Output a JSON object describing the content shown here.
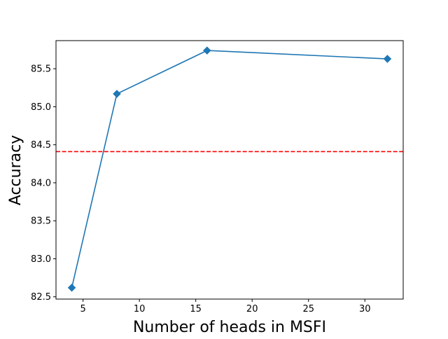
{
  "chart_data": {
    "type": "line",
    "title": "",
    "xlabel": "Number of heads in MSFI",
    "ylabel": "Accuracy",
    "xlim": [
      2.6,
      33.4
    ],
    "ylim": [
      82.47,
      85.87
    ],
    "xticks": [
      5,
      10,
      15,
      20,
      25,
      30
    ],
    "yticks": [
      82.5,
      83.0,
      83.5,
      84.0,
      84.5,
      85.0,
      85.5
    ],
    "series": [
      {
        "x": [
          4,
          8,
          16,
          32
        ],
        "y": [
          82.62,
          85.17,
          85.74,
          85.63
        ],
        "color": "#1f77b4",
        "marker": "diamond",
        "linestyle": "solid"
      }
    ],
    "reference_lines": [
      {
        "orientation": "horizontal",
        "y": 84.41,
        "color": "#ff0000",
        "linestyle": "dashed"
      }
    ],
    "grid": false,
    "legend": "none"
  }
}
